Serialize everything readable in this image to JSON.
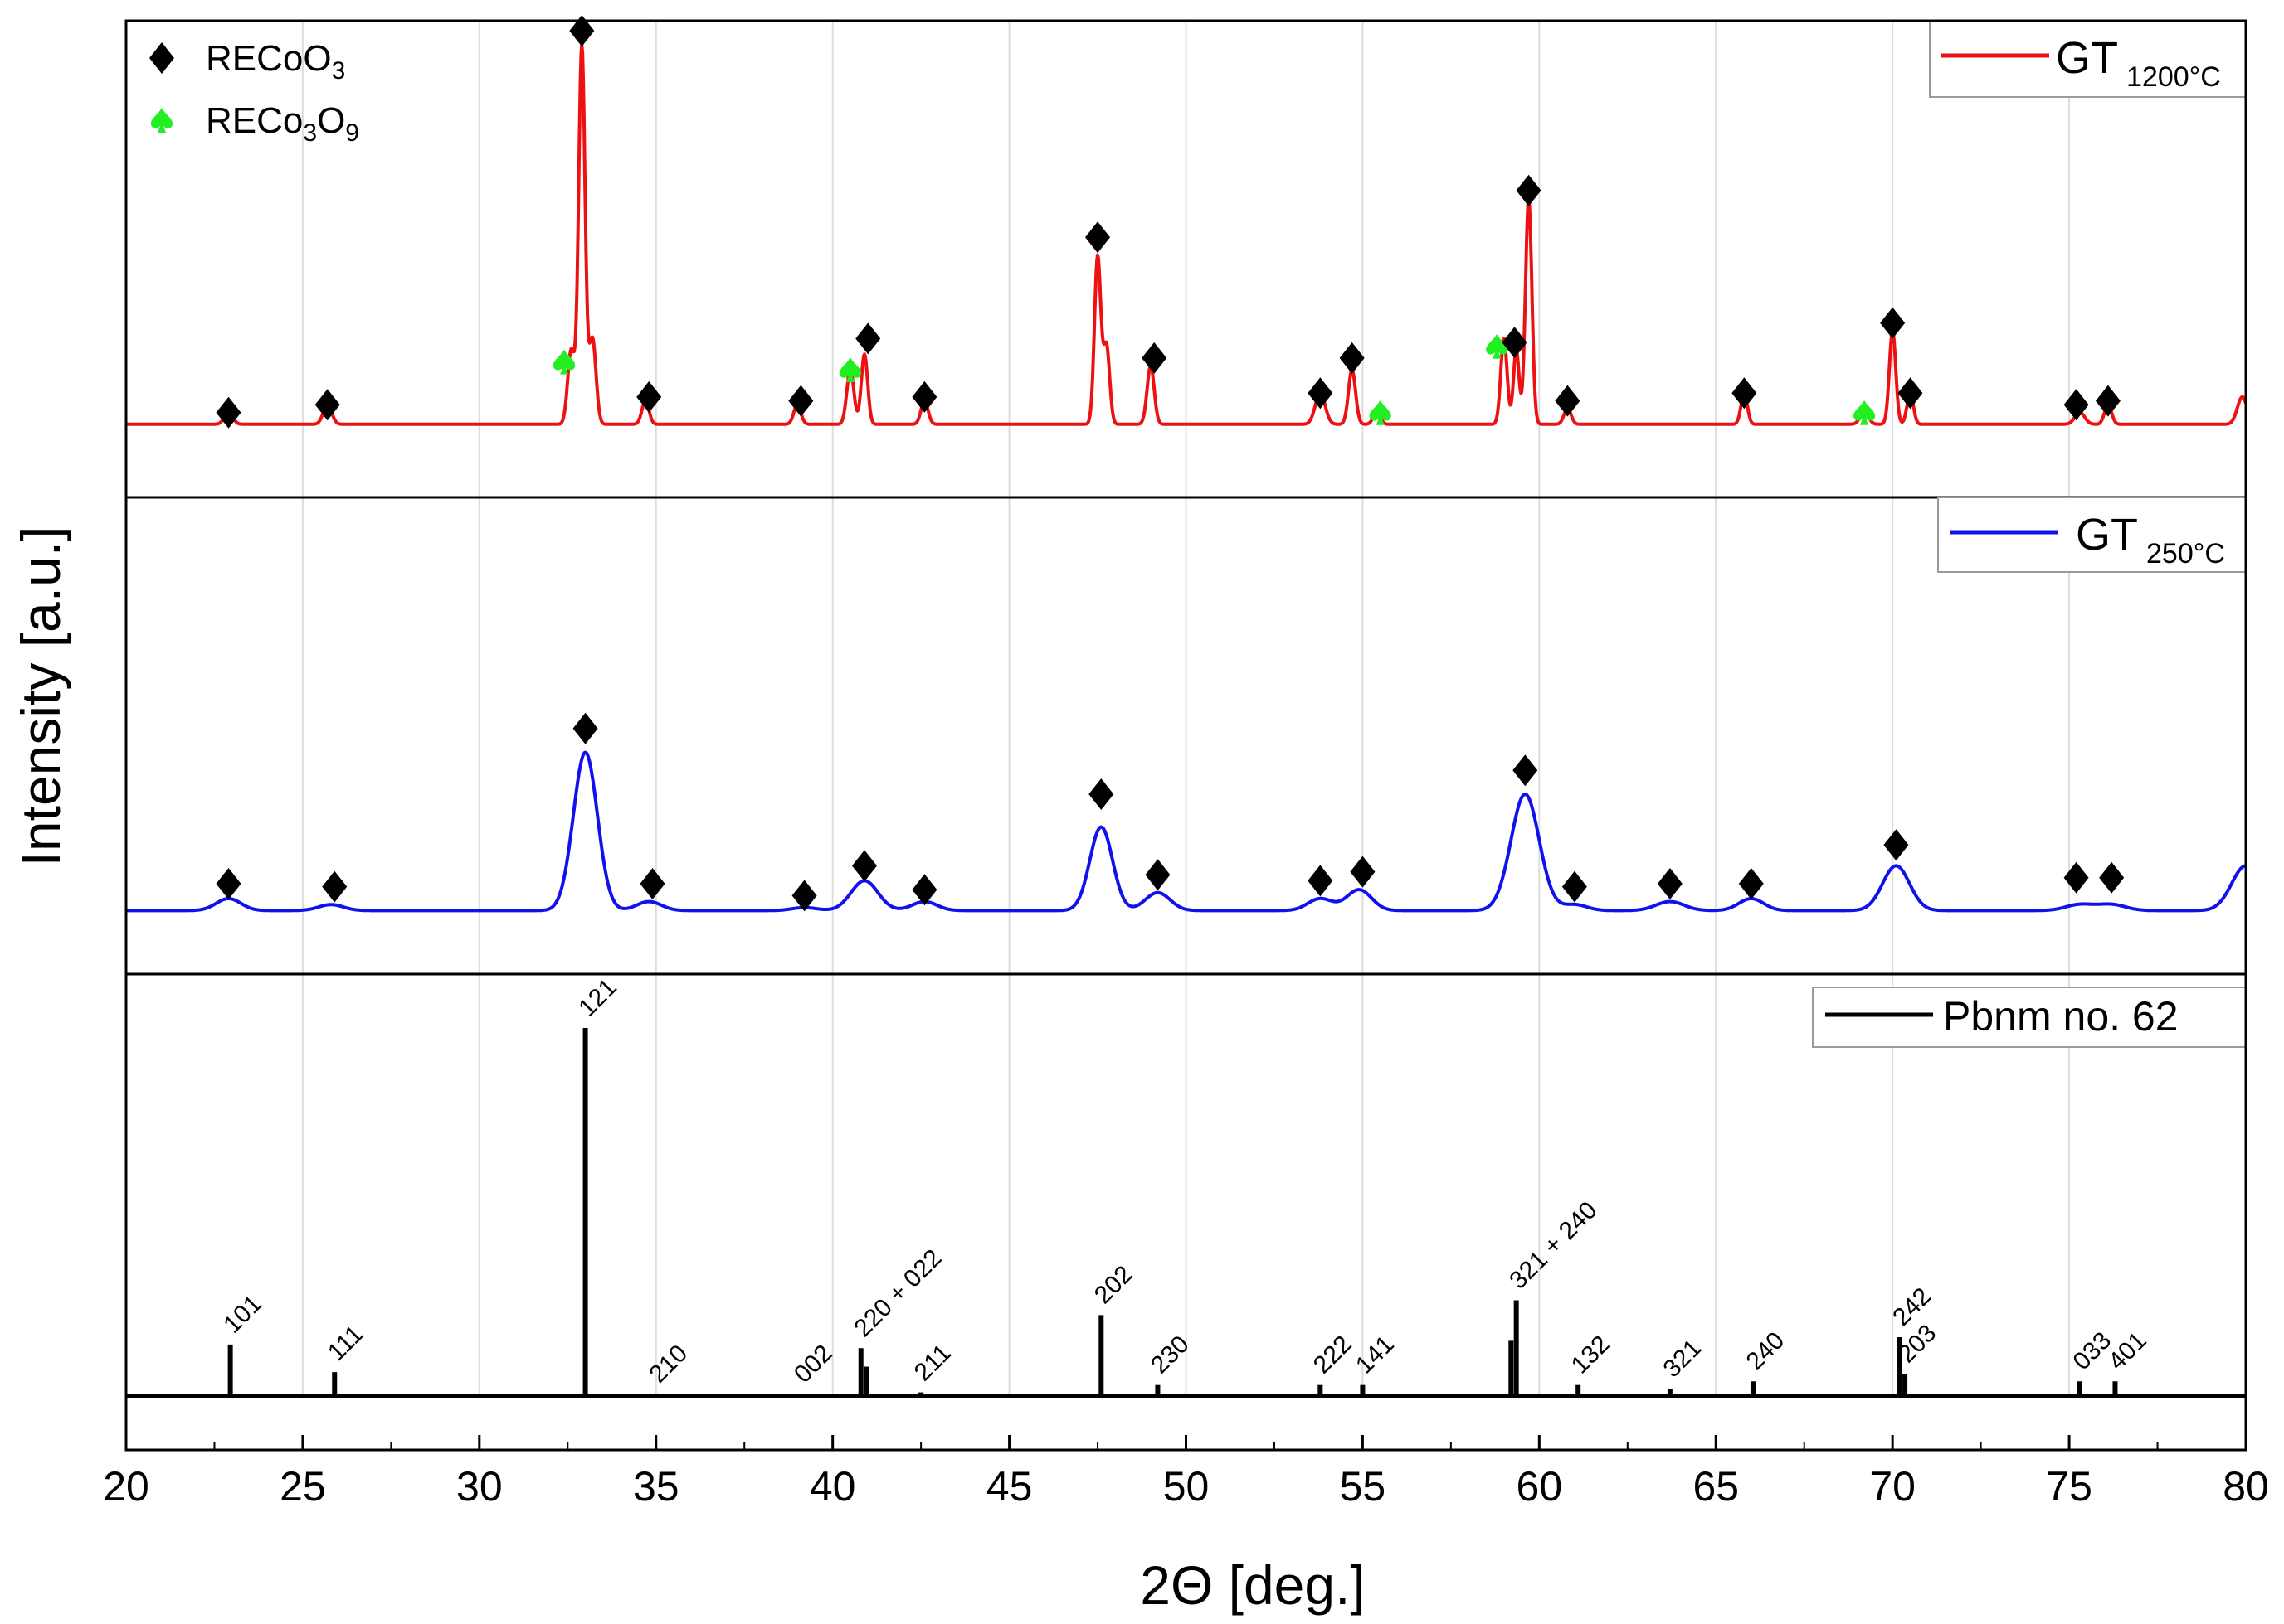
{
  "chart_data": {
    "type": "line",
    "ylabel": "Intensity [a.u.]",
    "xlabel": "2Θ [deg.]",
    "xlim": [
      20,
      80
    ],
    "xticks": [
      "20",
      "25",
      "30",
      "35",
      "40",
      "45",
      "50",
      "55",
      "60",
      "65",
      "70",
      "75",
      "80"
    ],
    "grid": true,
    "phase_legend": {
      "position": "top-left",
      "entries": [
        {
          "symbol": "diamond",
          "label_base": "RECoO",
          "label_sub": "3",
          "color": "#000000"
        },
        {
          "symbol": "spade",
          "label_base": "RECo",
          "label_sub": "3",
          "label_mid": "O",
          "label_sub2": "9",
          "color": "#22ee22"
        }
      ]
    },
    "panels": [
      {
        "name": "GT 1200°C",
        "legend_main": "GT",
        "legend_sub": "1200°C",
        "legend_position": "top-right",
        "color": "#ee1111",
        "baseline": 0.06,
        "peaks": [
          {
            "x": 22.9,
            "h": 0.03,
            "w": 0.12
          },
          {
            "x": 25.7,
            "h": 0.05,
            "w": 0.12
          },
          {
            "x": 32.6,
            "h": 0.19,
            "w": 0.1
          },
          {
            "x": 32.9,
            "h": 0.97,
            "w": 0.09
          },
          {
            "x": 33.2,
            "h": 0.22,
            "w": 0.1
          },
          {
            "x": 34.7,
            "h": 0.06,
            "w": 0.1
          },
          {
            "x": 39.0,
            "h": 0.05,
            "w": 0.1
          },
          {
            "x": 40.5,
            "h": 0.14,
            "w": 0.1
          },
          {
            "x": 40.9,
            "h": 0.18,
            "w": 0.09
          },
          {
            "x": 42.6,
            "h": 0.06,
            "w": 0.1
          },
          {
            "x": 47.5,
            "h": 0.43,
            "w": 0.09
          },
          {
            "x": 47.75,
            "h": 0.2,
            "w": 0.09
          },
          {
            "x": 49.0,
            "h": 0.15,
            "w": 0.1
          },
          {
            "x": 53.8,
            "h": 0.08,
            "w": 0.14
          },
          {
            "x": 54.7,
            "h": 0.14,
            "w": 0.1
          },
          {
            "x": 55.4,
            "h": 0.03,
            "w": 0.1
          },
          {
            "x": 59.0,
            "h": 0.22,
            "w": 0.09
          },
          {
            "x": 59.35,
            "h": 0.19,
            "w": 0.08
          },
          {
            "x": 59.7,
            "h": 0.58,
            "w": 0.09
          },
          {
            "x": 60.8,
            "h": 0.04,
            "w": 0.1
          },
          {
            "x": 65.8,
            "h": 0.08,
            "w": 0.09
          },
          {
            "x": 69.2,
            "h": 0.03,
            "w": 0.12
          },
          {
            "x": 70.0,
            "h": 0.24,
            "w": 0.09
          },
          {
            "x": 70.5,
            "h": 0.08,
            "w": 0.09
          },
          {
            "x": 75.3,
            "h": 0.03,
            "w": 0.14
          },
          {
            "x": 76.1,
            "h": 0.05,
            "w": 0.1
          },
          {
            "x": 79.9,
            "h": 0.07,
            "w": 0.14
          }
        ],
        "markers": [
          {
            "type": "diamond",
            "x": 22.9,
            "y": 0.09
          },
          {
            "type": "diamond",
            "x": 25.7,
            "y": 0.11
          },
          {
            "type": "spade",
            "x": 32.4,
            "y": 0.22
          },
          {
            "type": "diamond",
            "x": 32.9,
            "y": 1.07
          },
          {
            "type": "diamond",
            "x": 34.8,
            "y": 0.13
          },
          {
            "type": "diamond",
            "x": 39.1,
            "y": 0.12
          },
          {
            "type": "spade",
            "x": 40.5,
            "y": 0.2
          },
          {
            "type": "diamond",
            "x": 41.0,
            "y": 0.28
          },
          {
            "type": "diamond",
            "x": 42.6,
            "y": 0.13
          },
          {
            "type": "diamond",
            "x": 47.5,
            "y": 0.54
          },
          {
            "type": "diamond",
            "x": 49.1,
            "y": 0.23
          },
          {
            "type": "diamond",
            "x": 53.8,
            "y": 0.14
          },
          {
            "type": "diamond",
            "x": 54.7,
            "y": 0.23
          },
          {
            "type": "spade",
            "x": 55.5,
            "y": 0.09
          },
          {
            "type": "spade",
            "x": 58.8,
            "y": 0.26
          },
          {
            "type": "diamond",
            "x": 59.3,
            "y": 0.27
          },
          {
            "type": "diamond",
            "x": 59.7,
            "y": 0.66
          },
          {
            "type": "diamond",
            "x": 60.8,
            "y": 0.12
          },
          {
            "type": "diamond",
            "x": 65.8,
            "y": 0.14
          },
          {
            "type": "spade",
            "x": 69.2,
            "y": 0.09
          },
          {
            "type": "diamond",
            "x": 70.0,
            "y": 0.32
          },
          {
            "type": "diamond",
            "x": 70.5,
            "y": 0.14
          },
          {
            "type": "diamond",
            "x": 75.2,
            "y": 0.11
          },
          {
            "type": "diamond",
            "x": 76.1,
            "y": 0.12
          }
        ]
      },
      {
        "name": "GT 250°C",
        "legend_main": "GT",
        "legend_sub": "250°C",
        "legend_position": "top-right",
        "color": "#1111ee",
        "baseline": 0.06,
        "peaks": [
          {
            "x": 22.9,
            "h": 0.04,
            "w": 0.35
          },
          {
            "x": 25.8,
            "h": 0.02,
            "w": 0.35
          },
          {
            "x": 33.0,
            "h": 0.53,
            "w": 0.34
          },
          {
            "x": 34.8,
            "h": 0.03,
            "w": 0.35
          },
          {
            "x": 39.2,
            "h": 0.01,
            "w": 0.35
          },
          {
            "x": 40.9,
            "h": 0.1,
            "w": 0.38
          },
          {
            "x": 42.6,
            "h": 0.03,
            "w": 0.35
          },
          {
            "x": 47.6,
            "h": 0.28,
            "w": 0.32
          },
          {
            "x": 49.2,
            "h": 0.06,
            "w": 0.35
          },
          {
            "x": 53.8,
            "h": 0.04,
            "w": 0.35
          },
          {
            "x": 54.9,
            "h": 0.07,
            "w": 0.35
          },
          {
            "x": 59.6,
            "h": 0.39,
            "w": 0.4
          },
          {
            "x": 61.0,
            "h": 0.02,
            "w": 0.35
          },
          {
            "x": 63.7,
            "h": 0.03,
            "w": 0.4
          },
          {
            "x": 66.0,
            "h": 0.04,
            "w": 0.35
          },
          {
            "x": 70.1,
            "h": 0.15,
            "w": 0.38
          },
          {
            "x": 75.3,
            "h": 0.02,
            "w": 0.4
          },
          {
            "x": 76.2,
            "h": 0.02,
            "w": 0.4
          },
          {
            "x": 80.0,
            "h": 0.15,
            "w": 0.4
          }
        ],
        "markers": [
          {
            "type": "diamond",
            "x": 22.9,
            "y": 0.15
          },
          {
            "type": "diamond",
            "x": 25.9,
            "y": 0.14
          },
          {
            "type": "diamond",
            "x": 33.0,
            "y": 0.67
          },
          {
            "type": "diamond",
            "x": 34.9,
            "y": 0.15
          },
          {
            "type": "diamond",
            "x": 39.2,
            "y": 0.11
          },
          {
            "type": "diamond",
            "x": 40.9,
            "y": 0.21
          },
          {
            "type": "diamond",
            "x": 42.6,
            "y": 0.13
          },
          {
            "type": "diamond",
            "x": 47.6,
            "y": 0.45
          },
          {
            "type": "diamond",
            "x": 49.2,
            "y": 0.18
          },
          {
            "type": "diamond",
            "x": 53.8,
            "y": 0.16
          },
          {
            "type": "diamond",
            "x": 55.0,
            "y": 0.19
          },
          {
            "type": "diamond",
            "x": 59.6,
            "y": 0.53
          },
          {
            "type": "diamond",
            "x": 61.0,
            "y": 0.14
          },
          {
            "type": "diamond",
            "x": 63.7,
            "y": 0.15
          },
          {
            "type": "diamond",
            "x": 66.0,
            "y": 0.15
          },
          {
            "type": "diamond",
            "x": 70.1,
            "y": 0.28
          },
          {
            "type": "diamond",
            "x": 75.2,
            "y": 0.17
          },
          {
            "type": "diamond",
            "x": 76.2,
            "y": 0.17
          }
        ]
      },
      {
        "name": "Pbnm no. 62",
        "legend_label": "Pbnm no. 62",
        "legend_position": "top-right",
        "color": "#000000",
        "type": "reference_sticks",
        "sticks": [
          {
            "x": 22.95,
            "h": 0.14,
            "label": "101"
          },
          {
            "x": 25.9,
            "h": 0.065,
            "label": "111"
          },
          {
            "x": 33.0,
            "h": 1.0,
            "label": "121"
          },
          {
            "x": 35.0,
            "h": 0.005,
            "label": "210"
          },
          {
            "x": 39.1,
            "h": 0.005,
            "label": "002"
          },
          {
            "x": 40.8,
            "h": 0.13,
            "label": "220 + 022"
          },
          {
            "x": 40.95,
            "h": 0.08,
            "label": ""
          },
          {
            "x": 42.5,
            "h": 0.01,
            "label": "211"
          },
          {
            "x": 47.6,
            "h": 0.22,
            "label": "202"
          },
          {
            "x": 49.2,
            "h": 0.03,
            "label": "230"
          },
          {
            "x": 53.8,
            "h": 0.03,
            "label": "222"
          },
          {
            "x": 55.0,
            "h": 0.03,
            "label": "141"
          },
          {
            "x": 59.2,
            "h": 0.15,
            "label": ""
          },
          {
            "x": 59.35,
            "h": 0.26,
            "label": "321 + 240"
          },
          {
            "x": 61.1,
            "h": 0.03,
            "label": "132"
          },
          {
            "x": 63.7,
            "h": 0.02,
            "label": "321"
          },
          {
            "x": 66.05,
            "h": 0.04,
            "label": "240"
          },
          {
            "x": 70.2,
            "h": 0.16,
            "label": "242"
          },
          {
            "x": 70.35,
            "h": 0.06,
            "label": "203"
          },
          {
            "x": 75.3,
            "h": 0.04,
            "label": "033"
          },
          {
            "x": 76.3,
            "h": 0.04,
            "label": "401"
          }
        ]
      }
    ]
  }
}
